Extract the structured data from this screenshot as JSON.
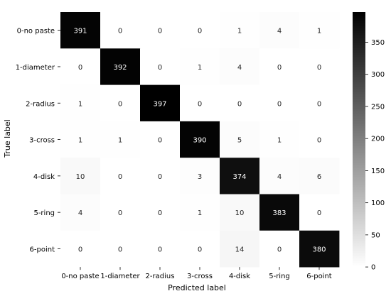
{
  "chart_data": {
    "type": "heatmap",
    "title": "",
    "xlabel": "Predicted label",
    "ylabel": "True label",
    "row_labels": [
      "0-no paste",
      "1-diameter",
      "2-radius",
      "3-cross",
      "4-disk",
      "5-ring",
      "6-point"
    ],
    "col_labels": [
      "0-no paste",
      "1-diameter",
      "2-radius",
      "3-cross",
      "4-disk",
      "5-ring",
      "6-point"
    ],
    "values": [
      [
        391,
        0,
        0,
        0,
        1,
        4,
        1
      ],
      [
        0,
        392,
        0,
        1,
        4,
        0,
        0
      ],
      [
        1,
        0,
        397,
        0,
        0,
        0,
        0
      ],
      [
        1,
        1,
        0,
        390,
        5,
        1,
        0
      ],
      [
        10,
        0,
        0,
        3,
        374,
        4,
        6
      ],
      [
        4,
        0,
        0,
        1,
        10,
        383,
        0
      ],
      [
        0,
        0,
        0,
        0,
        14,
        0,
        380
      ]
    ],
    "colorbar": {
      "range": [
        0,
        397
      ],
      "ticks": [
        "0",
        "50",
        "100",
        "150",
        "200",
        "250",
        "300",
        "350"
      ],
      "tick_values": [
        0,
        50,
        100,
        150,
        200,
        250,
        300,
        350
      ],
      "colormap": "white-to-black"
    },
    "grid": false,
    "legend": "colorbar-right"
  }
}
